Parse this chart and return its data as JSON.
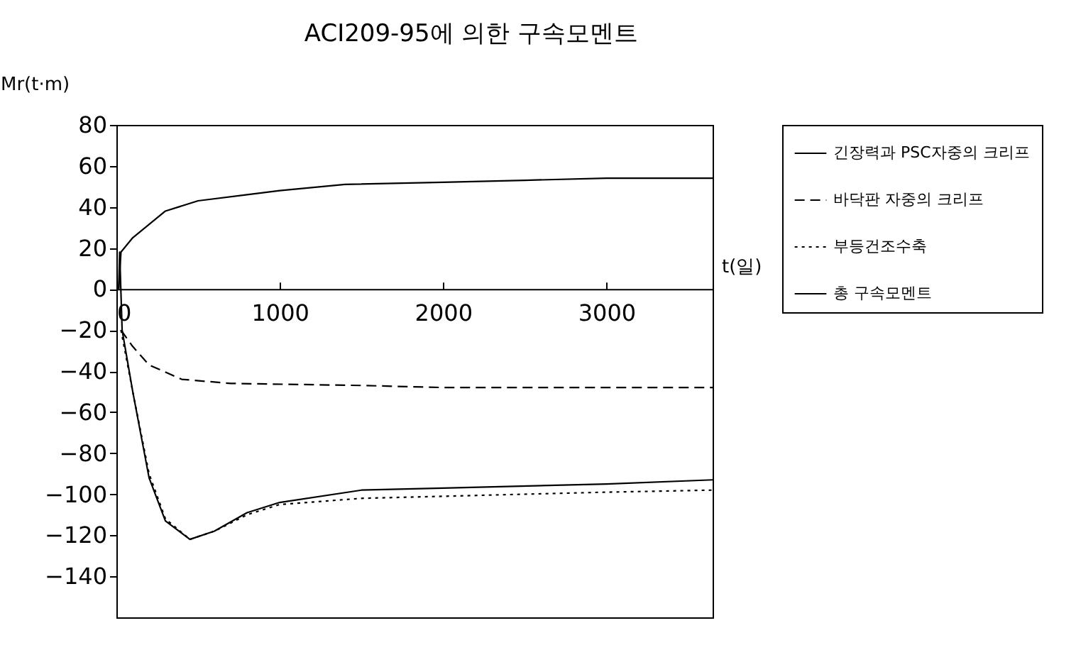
{
  "chart_data": {
    "type": "line",
    "title": "ACI209-95에 의한 구속모멘트",
    "xlabel": "t(일)",
    "ylabel": "Mr(t·m)",
    "xlim": [
      0,
      3650
    ],
    "xticks": [
      0,
      1000,
      2000,
      3000
    ],
    "ylim": [
      -160,
      80
    ],
    "yticks": [
      80,
      60,
      40,
      20,
      0,
      -20,
      -40,
      -60,
      -80,
      -100,
      -120,
      -140
    ],
    "grid": false,
    "legend": "right",
    "series": [
      {
        "name": "긴장력과 PSC자중의 크리프",
        "color": "#000000",
        "line_style": "solid",
        "x": [
          14,
          28,
          100,
          300,
          500,
          800,
          1000,
          1400,
          2000,
          2500,
          3000,
          3650
        ],
        "values": [
          0,
          18,
          25,
          38,
          43,
          46,
          48,
          51,
          52,
          53,
          54,
          54
        ]
      },
      {
        "name": "바닥판 자중의 크리프",
        "color": "#000000",
        "line_style": "dashed",
        "x": [
          28,
          100,
          200,
          400,
          700,
          1500,
          2000,
          3650
        ],
        "values": [
          -20,
          -28,
          -37,
          -44,
          -46,
          -47,
          -48,
          -48
        ]
      },
      {
        "name": "부등건조수축",
        "color": "#000000",
        "line_style": "dotted",
        "x": [
          28,
          100,
          200,
          300,
          450,
          600,
          800,
          1000,
          1500,
          2000,
          3000,
          3650
        ],
        "values": [
          -20,
          -50,
          -90,
          -112,
          -122,
          -118,
          -110,
          -105,
          -102,
          -101,
          -99,
          -98
        ]
      },
      {
        "name": "총 구속모멘트",
        "color": "#000000",
        "line_style": "solid",
        "x": [
          14,
          20,
          35,
          100,
          200,
          300,
          450,
          600,
          800,
          1000,
          1500,
          2000,
          3000,
          3650
        ],
        "values": [
          0,
          18,
          -20,
          -50,
          -92,
          -113,
          -122,
          -118,
          -109,
          -104,
          -98,
          -97,
          -95,
          -93
        ]
      }
    ]
  }
}
